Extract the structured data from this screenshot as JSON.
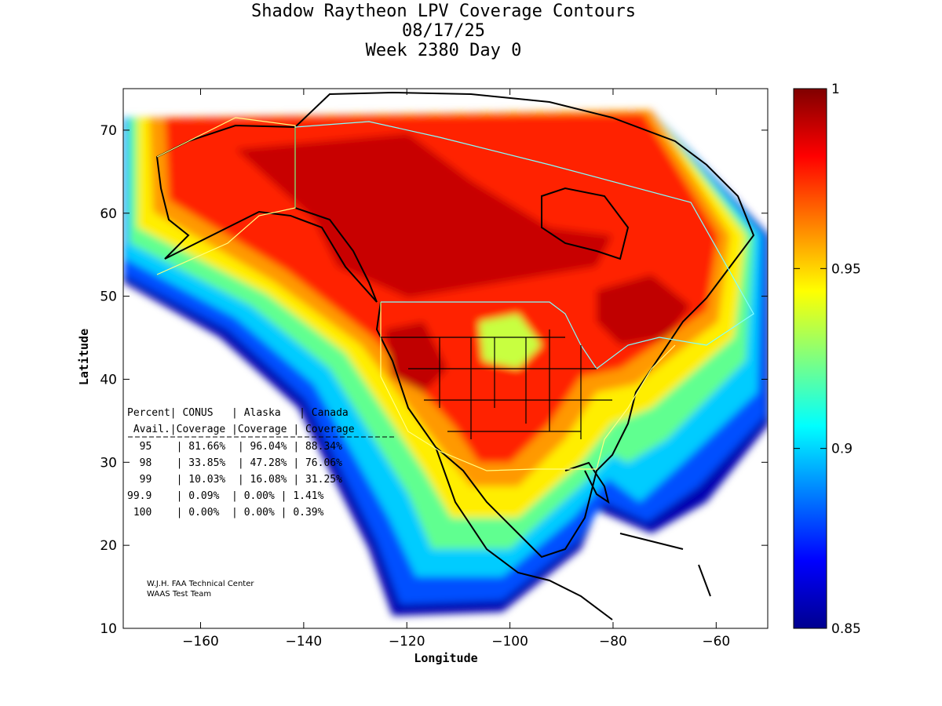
{
  "header": {
    "title_line1": "Shadow Raytheon LPV Coverage Contours",
    "title_line2": "08/17/25",
    "title_line3": "Week 2380 Day 0"
  },
  "chart_data": {
    "type": "heatmap",
    "xlabel": "Longitude",
    "ylabel": "Latitude",
    "xlim": [
      -175,
      -50
    ],
    "ylim": [
      10,
      75
    ],
    "xticks": [
      -160,
      -140,
      -120,
      -100,
      -80,
      -60
    ],
    "yticks": [
      10,
      20,
      30,
      40,
      50,
      60,
      70
    ],
    "colorbar": {
      "min": 0.85,
      "max": 1,
      "ticks": [
        {
          "value": 0.85,
          "label": "0.85"
        },
        {
          "value": 0.9,
          "label": "0.9"
        },
        {
          "value": 0.95,
          "label": "0.95"
        },
        {
          "value": 1,
          "label": "1"
        }
      ]
    },
    "table": {
      "header1": "Percent| CONUS   | Alaska   | Canada",
      "header2": " Avail.|Coverage |Coverage | Coverage",
      "rows": [
        "  95    | 81.66%  | 96.04% | 88.34%",
        "  98    | 33.85%  | 47.28% | 76.06%",
        "  99    | 10.03%  | 16.08% | 31.25%",
        "99.9    | 0.09%  | 0.00% | 1.41%",
        " 100    | 0.00%  | 0.00% | 0.39%"
      ]
    },
    "credits": [
      "W.J.H. FAA Technical Center",
      "WAAS Test Team"
    ]
  }
}
